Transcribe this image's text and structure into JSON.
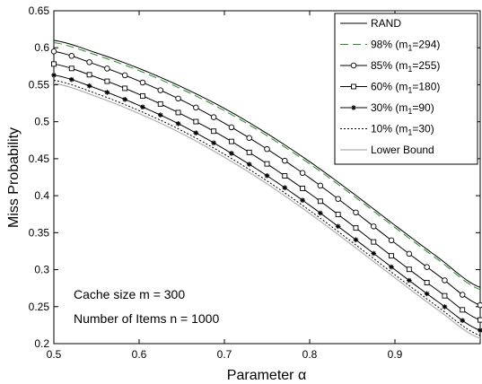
{
  "chart_data": {
    "type": "line",
    "title": "",
    "xlabel": "Parameter α",
    "ylabel": "Miss Probability",
    "xlim": [
      0.5,
      1.0
    ],
    "ylim": [
      0.2,
      0.65
    ],
    "x_ticks": [
      "0.5",
      "0.6",
      "0.7",
      "0.8",
      "0.9"
    ],
    "y_ticks": [
      "0.2",
      "0.25",
      "0.3",
      "0.35",
      "0.4",
      "0.45",
      "0.5",
      "0.55",
      "0.6",
      "0.65"
    ],
    "x": [
      0.5,
      0.55,
      0.6,
      0.65,
      0.7,
      0.75,
      0.8,
      0.85,
      0.9,
      0.95,
      1.0
    ],
    "series": [
      {
        "name": "RAND",
        "legend_prefix": "RAND",
        "legend_sub": "",
        "legend_suffix": "",
        "color": "#000000",
        "style": "solid",
        "marker": "none",
        "values": [
          0.61,
          0.593,
          0.572,
          0.547,
          0.518,
          0.484,
          0.446,
          0.404,
          0.36,
          0.317,
          0.276
        ]
      },
      {
        "name": "98% (m1=294)",
        "legend_prefix": "98% (m",
        "legend_sub": "1",
        "legend_suffix": "=294)",
        "color": "#2a8a2a",
        "style": "dashed",
        "marker": "none",
        "values": [
          0.607,
          0.59,
          0.569,
          0.544,
          0.515,
          0.481,
          0.443,
          0.401,
          0.357,
          0.314,
          0.273
        ]
      },
      {
        "name": "85% (m1=255)",
        "legend_prefix": "85% (m",
        "legend_sub": "1",
        "legend_suffix": "=255)",
        "color": "#000000",
        "style": "solid",
        "marker": "circle",
        "values": [
          0.595,
          0.577,
          0.555,
          0.529,
          0.498,
          0.463,
          0.424,
          0.381,
          0.336,
          0.293,
          0.252
        ]
      },
      {
        "name": "60% (m1=180)",
        "legend_prefix": "60% (m",
        "legend_sub": "1",
        "legend_suffix": "=180)",
        "color": "#000000",
        "style": "solid",
        "marker": "square",
        "values": [
          0.578,
          0.56,
          0.537,
          0.51,
          0.479,
          0.443,
          0.403,
          0.36,
          0.315,
          0.272,
          0.232
        ]
      },
      {
        "name": "30% (m1=90)",
        "legend_prefix": "30% (m",
        "legend_sub": "1",
        "legend_suffix": "=90)",
        "color": "#000000",
        "style": "solid",
        "marker": "star",
        "values": [
          0.563,
          0.545,
          0.522,
          0.495,
          0.463,
          0.427,
          0.387,
          0.344,
          0.3,
          0.257,
          0.218
        ]
      },
      {
        "name": "10% (m1=30)",
        "legend_prefix": "10% (m",
        "legend_sub": "1",
        "legend_suffix": "=30)",
        "color": "#000000",
        "style": "dotted",
        "marker": "none",
        "values": [
          0.556,
          0.538,
          0.515,
          0.488,
          0.456,
          0.42,
          0.38,
          0.337,
          0.293,
          0.25,
          0.211
        ]
      },
      {
        "name": "Lower Bound",
        "legend_prefix": "Lower Bound",
        "legend_sub": "",
        "legend_suffix": "",
        "color": "#b0b0b0",
        "style": "solid",
        "marker": "none",
        "values": [
          0.552,
          0.534,
          0.511,
          0.484,
          0.452,
          0.416,
          0.376,
          0.333,
          0.289,
          0.246,
          0.207
        ]
      }
    ],
    "annotations": [
      "Cache size m = 300",
      "Number of Items n = 1000"
    ],
    "grid": false,
    "legend_position": "top-right"
  }
}
